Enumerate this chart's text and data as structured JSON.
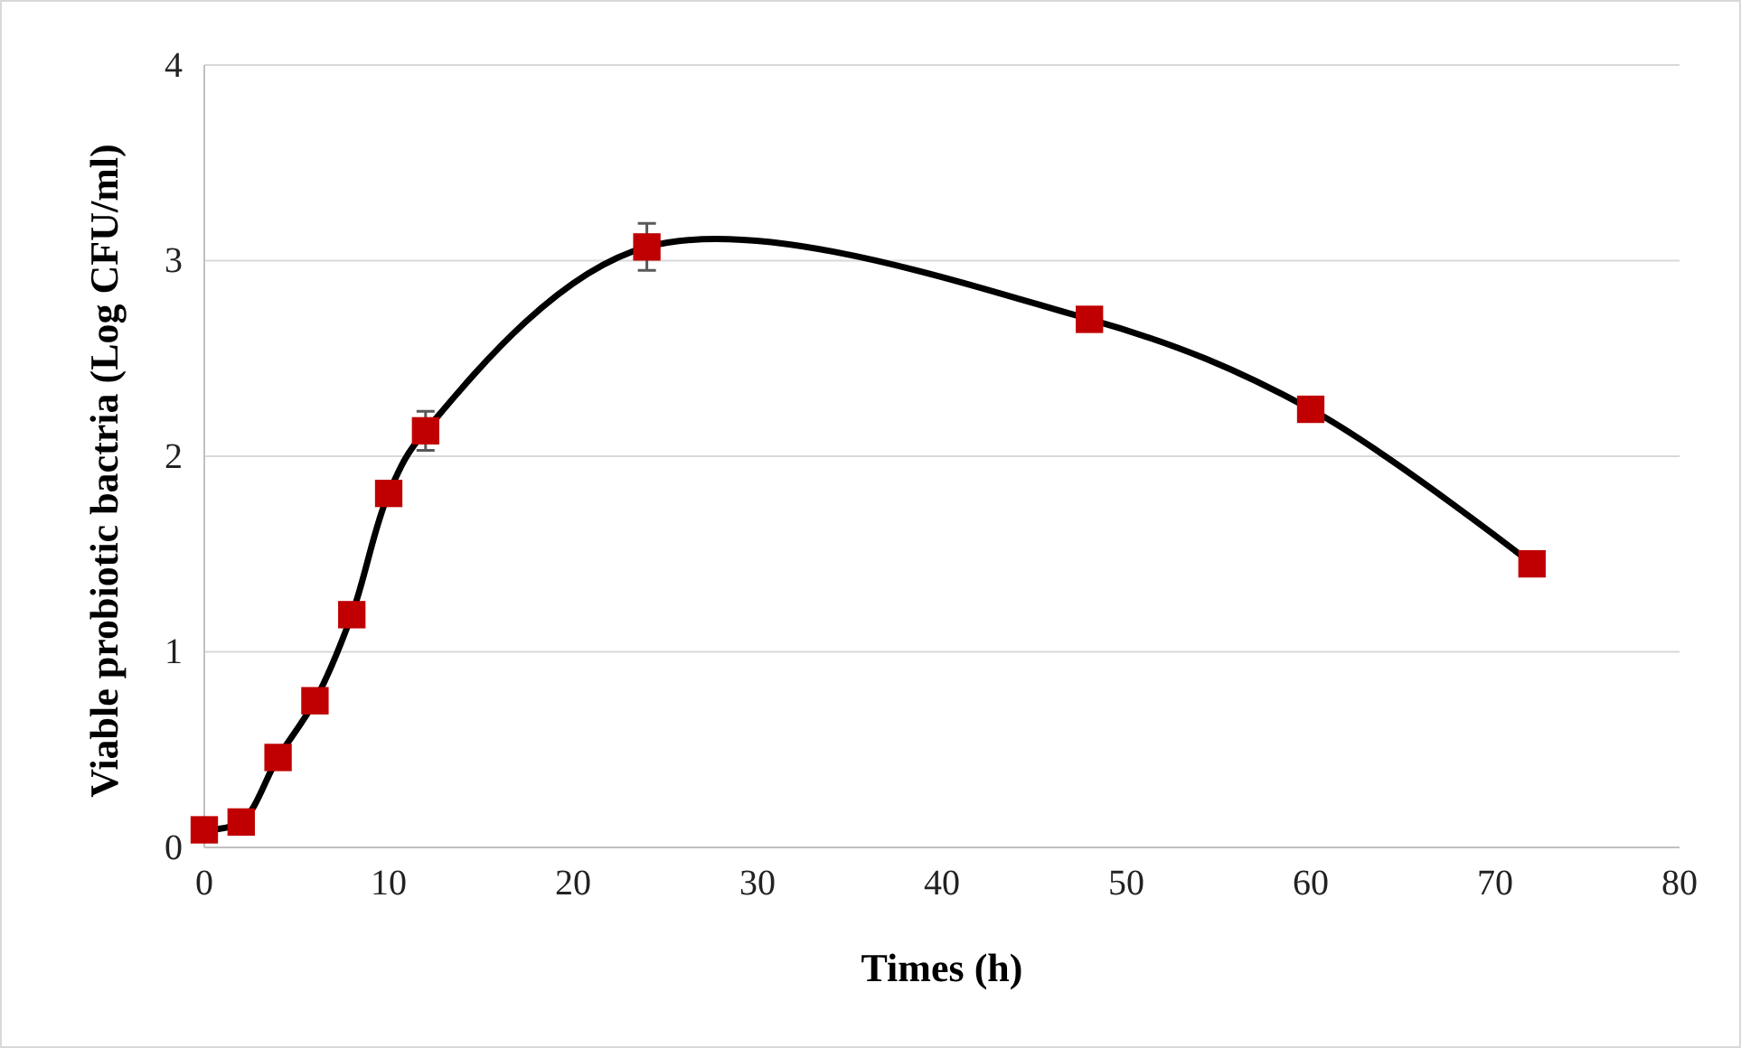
{
  "chart_data": {
    "type": "line",
    "xlabel": "Times (h)",
    "ylabel": "Viable probiotic bactria (Log CFU/ml)",
    "x": [
      0,
      2,
      4,
      6,
      8,
      10,
      12,
      24,
      48,
      60,
      72
    ],
    "series": [
      {
        "color": "#c00000",
        "values": [
          0.09,
          0.13,
          0.46,
          0.75,
          1.19,
          1.81,
          2.13,
          3.07,
          2.7,
          2.24,
          1.45
        ],
        "errors": [
          null,
          null,
          null,
          null,
          null,
          null,
          0.1,
          0.12,
          null,
          null,
          null
        ]
      }
    ],
    "xlim": [
      0,
      80
    ],
    "xticks": [
      0,
      10,
      20,
      30,
      40,
      50,
      60,
      70,
      80
    ],
    "ylim": [
      0,
      4
    ],
    "yticks": [
      0,
      1,
      2,
      3,
      4
    ],
    "grid": "y",
    "marker": "square",
    "line_style": "solid"
  }
}
